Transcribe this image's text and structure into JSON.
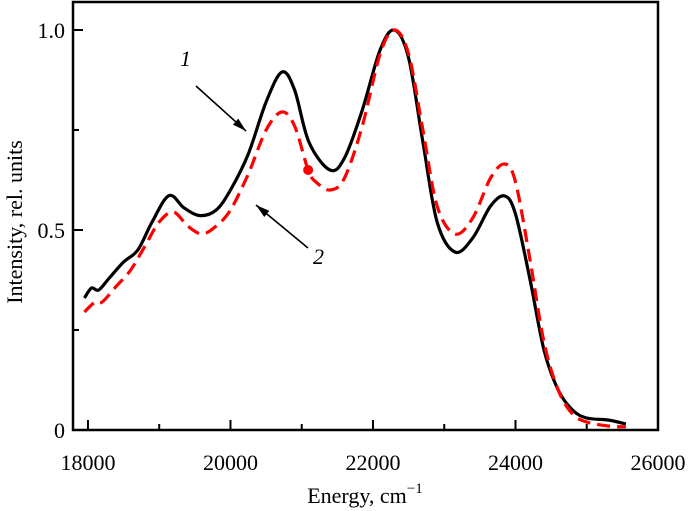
{
  "chart_data": {
    "type": "line",
    "title": "",
    "xlabel": "Energy, cm",
    "xlabel_superscript": "−1",
    "ylabel": "Intensity, rel. units",
    "xlim": [
      17790,
      26000
    ],
    "ylim": [
      0,
      1.07
    ],
    "x_ticks": [
      18000,
      20000,
      22000,
      24000,
      26000
    ],
    "x_tick_labels": [
      "18000",
      "20000",
      "22000",
      "24000",
      "26000"
    ],
    "x_minor_ticks": [
      19000,
      21000,
      23000,
      25000
    ],
    "y_ticks": [
      0,
      0.5,
      1.0
    ],
    "y_tick_labels": [
      "0",
      "0.5",
      "1.0"
    ],
    "y_minor_ticks": [
      0.25,
      0.75
    ],
    "grid": false,
    "colors": {
      "series1": "#000000",
      "series2": "#ff0000"
    },
    "series": [
      {
        "name": "1",
        "style": "solid",
        "x": [
          17950,
          18050,
          18150,
          18300,
          18500,
          18700,
          18900,
          19137,
          19350,
          19572,
          19800,
          20000,
          20250,
          20500,
          20723,
          20900,
          21100,
          21396,
          21600,
          21850,
          22100,
          22300,
          22500,
          22700,
          22900,
          23150,
          23400,
          23650,
          23850,
          24000,
          24200,
          24400,
          24600,
          24800,
          25000,
          25300,
          25550
        ],
        "y": [
          0.33,
          0.355,
          0.35,
          0.38,
          0.42,
          0.45,
          0.52,
          0.586,
          0.555,
          0.536,
          0.55,
          0.6,
          0.69,
          0.82,
          0.895,
          0.85,
          0.72,
          0.65,
          0.68,
          0.8,
          0.95,
          1.0,
          0.93,
          0.72,
          0.52,
          0.445,
          0.48,
          0.56,
          0.585,
          0.54,
          0.38,
          0.2,
          0.1,
          0.05,
          0.03,
          0.025,
          0.015
        ]
      },
      {
        "name": "2",
        "style": "dashed",
        "x": [
          17950,
          18100,
          18200,
          18400,
          18600,
          18800,
          19000,
          19200,
          19400,
          19600,
          19800,
          20000,
          20250,
          20500,
          20720,
          20900,
          21090,
          21200,
          21400,
          21600,
          21850,
          22100,
          22300,
          22500,
          22700,
          22900,
          23150,
          23400,
          23650,
          23850,
          24000,
          24200,
          24400,
          24600,
          24800,
          25000,
          25300,
          25550
        ],
        "y": [
          0.295,
          0.32,
          0.32,
          0.36,
          0.4,
          0.46,
          0.52,
          0.545,
          0.51,
          0.49,
          0.51,
          0.55,
          0.64,
          0.75,
          0.795,
          0.76,
          0.65,
          0.62,
          0.6,
          0.63,
          0.76,
          0.94,
          1.0,
          0.94,
          0.75,
          0.56,
          0.49,
          0.53,
          0.63,
          0.665,
          0.62,
          0.43,
          0.22,
          0.1,
          0.04,
          0.02,
          0.01,
          0.008
        ]
      }
    ],
    "markers": [
      {
        "x": 21090,
        "y": 0.65,
        "color": "#ff0000"
      }
    ],
    "annotations": [
      {
        "text": "1"
      },
      {
        "text": "2"
      }
    ]
  }
}
